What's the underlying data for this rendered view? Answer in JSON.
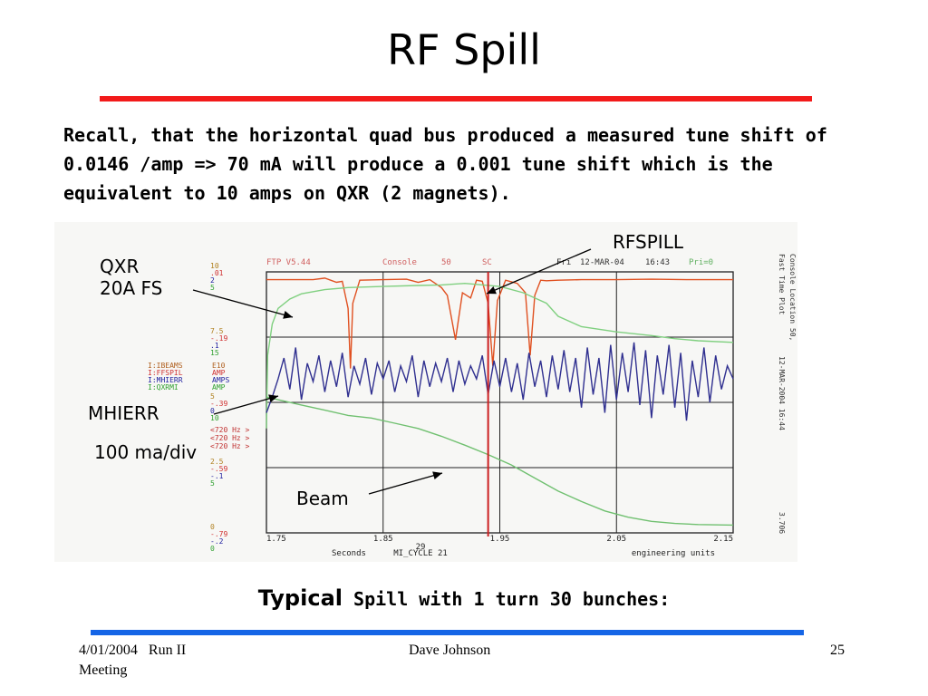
{
  "slide": {
    "title": "RF Spill",
    "paragraph": "Recall, that the horizontal quad bus produced a measured tune shift of\n0.0146 /amp => 70 mA will produce a 0.001 tune shift which is the\nequivalent to 10 amps on QXR (2 magnets).",
    "caption_big": "Typical",
    "caption_small": " Spill with 1 turn 30 bunches:",
    "footer": {
      "date": "4/01/2004",
      "event_line1": "Run II",
      "event_line2": "Meeting",
      "author": "Dave Johnson",
      "page": "25"
    },
    "colors": {
      "title_bar": "#f21a1a",
      "footer_bar": "#1565e6"
    }
  },
  "annotations": {
    "qxr_line1": "QXR",
    "qxr_line2": "20A FS",
    "rfspill": "RFSPILL",
    "mhierr": "MHIERR",
    "mhierr_scale": "100 ma/div",
    "beam": "Beam"
  },
  "chart_data": {
    "type": "line",
    "header": {
      "left": "FTP V5.44",
      "console": "Console",
      "console_no": "50",
      "sc": "SC",
      "day": "Fri",
      "date": "12-MAR-04",
      "time": "16:43",
      "pri": "Pri=0"
    },
    "right_side_text": {
      "line1": "Console Location 50,",
      "line2": "Fast Time Plot",
      "timestamp": "12-MAR-2004 16:44",
      "value": "3.706"
    },
    "xlim": [
      1.75,
      2.15
    ],
    "x_ticks": [
      "1.75",
      "1.85",
      "1.95",
      "2.05",
      "2.15"
    ],
    "x_label": "Seconds",
    "x_bottom_center_top": "29",
    "x_bottom_center": "MI_CYCLE 21",
    "x_bottom_right": "engineering units",
    "left_scales": [
      [
        "10",
        ".01",
        "2",
        "5"
      ],
      [
        "7.5",
        "-.19",
        ".1",
        "15"
      ],
      [
        "5",
        "-.39",
        "0",
        "10"
      ],
      [
        "2.5",
        "-.59",
        "-.1",
        "5"
      ],
      [
        "0",
        "-.79",
        "-.2",
        "0"
      ]
    ],
    "channels": [
      {
        "name": "I:IBEAMS",
        "unit": "E10"
      },
      {
        "name": "I:FFSPIL",
        "unit": "AMP"
      },
      {
        "name": "I:MHIERR",
        "unit": "AMPS"
      },
      {
        "name": "I:QXRMI",
        "unit": "AMP"
      }
    ],
    "rates": [
      "<720 Hz >",
      "<720 Hz >",
      "<720 Hz >"
    ],
    "series": [
      {
        "name": "RFSPILL",
        "color": "#e05020",
        "points": [
          [
            1.75,
            4.85
          ],
          [
            1.77,
            4.85
          ],
          [
            1.79,
            4.85
          ],
          [
            1.8,
            4.88
          ],
          [
            1.81,
            4.8
          ],
          [
            1.815,
            4.82
          ],
          [
            1.82,
            4.3
          ],
          [
            1.822,
            3.15
          ],
          [
            1.824,
            4.4
          ],
          [
            1.83,
            4.84
          ],
          [
            1.85,
            4.85
          ],
          [
            1.87,
            4.86
          ],
          [
            1.88,
            4.8
          ],
          [
            1.89,
            4.85
          ],
          [
            1.9,
            4.7
          ],
          [
            1.905,
            4.55
          ],
          [
            1.912,
            3.7
          ],
          [
            1.918,
            4.6
          ],
          [
            1.925,
            4.5
          ],
          [
            1.93,
            4.84
          ],
          [
            1.935,
            4.82
          ],
          [
            1.94,
            4.4
          ],
          [
            1.944,
            3.2
          ],
          [
            1.948,
            4.45
          ],
          [
            1.955,
            4.84
          ],
          [
            1.965,
            4.78
          ],
          [
            1.972,
            4.6
          ],
          [
            1.976,
            3.4
          ],
          [
            1.98,
            4.55
          ],
          [
            1.985,
            4.84
          ],
          [
            1.99,
            4.83
          ],
          [
            2.0,
            4.84
          ],
          [
            2.02,
            4.85
          ],
          [
            2.05,
            4.85
          ],
          [
            2.08,
            4.86
          ],
          [
            2.11,
            4.85
          ],
          [
            2.15,
            4.85
          ]
        ]
      },
      {
        "name": "QXR",
        "color": "#80d080",
        "points": [
          [
            1.75,
            2.0
          ],
          [
            1.751,
            3.4
          ],
          [
            1.755,
            4.0
          ],
          [
            1.76,
            4.3
          ],
          [
            1.77,
            4.48
          ],
          [
            1.78,
            4.58
          ],
          [
            1.8,
            4.66
          ],
          [
            1.82,
            4.7
          ],
          [
            1.85,
            4.72
          ],
          [
            1.88,
            4.74
          ],
          [
            1.9,
            4.75
          ],
          [
            1.92,
            4.78
          ],
          [
            1.95,
            4.72
          ],
          [
            1.97,
            4.6
          ],
          [
            1.99,
            4.4
          ],
          [
            2.0,
            4.15
          ],
          [
            2.02,
            3.95
          ],
          [
            2.05,
            3.85
          ],
          [
            2.08,
            3.78
          ],
          [
            2.1,
            3.72
          ],
          [
            2.12,
            3.68
          ],
          [
            2.15,
            3.65
          ]
        ]
      },
      {
        "name": "MHIERR",
        "color": "#303090",
        "points": [
          [
            1.75,
            2.3
          ],
          [
            1.755,
            2.6
          ],
          [
            1.76,
            2.95
          ],
          [
            1.765,
            3.35
          ],
          [
            1.77,
            2.75
          ],
          [
            1.775,
            3.55
          ],
          [
            1.78,
            2.55
          ],
          [
            1.785,
            3.25
          ],
          [
            1.79,
            2.9
          ],
          [
            1.795,
            3.4
          ],
          [
            1.8,
            2.7
          ],
          [
            1.805,
            3.3
          ],
          [
            1.81,
            2.8
          ],
          [
            1.815,
            3.45
          ],
          [
            1.82,
            2.6
          ],
          [
            1.825,
            3.2
          ],
          [
            1.83,
            2.85
          ],
          [
            1.835,
            3.35
          ],
          [
            1.84,
            2.65
          ],
          [
            1.845,
            3.25
          ],
          [
            1.85,
            2.95
          ],
          [
            1.855,
            3.3
          ],
          [
            1.86,
            2.7
          ],
          [
            1.865,
            3.2
          ],
          [
            1.87,
            2.9
          ],
          [
            1.875,
            3.4
          ],
          [
            1.88,
            2.6
          ],
          [
            1.885,
            3.3
          ],
          [
            1.89,
            2.8
          ],
          [
            1.895,
            3.25
          ],
          [
            1.9,
            2.9
          ],
          [
            1.905,
            3.35
          ],
          [
            1.91,
            2.7
          ],
          [
            1.915,
            3.3
          ],
          [
            1.92,
            2.85
          ],
          [
            1.925,
            3.2
          ],
          [
            1.93,
            2.95
          ],
          [
            1.935,
            3.4
          ],
          [
            1.94,
            2.65
          ],
          [
            1.945,
            3.3
          ],
          [
            1.95,
            2.8
          ],
          [
            1.955,
            3.35
          ],
          [
            1.96,
            2.7
          ],
          [
            1.965,
            3.25
          ],
          [
            1.97,
            2.55
          ],
          [
            1.975,
            3.45
          ],
          [
            1.98,
            2.8
          ],
          [
            1.985,
            3.3
          ],
          [
            1.99,
            2.6
          ],
          [
            1.995,
            3.4
          ],
          [
            2.0,
            2.75
          ],
          [
            2.005,
            3.5
          ],
          [
            2.01,
            2.7
          ],
          [
            2.015,
            3.35
          ],
          [
            2.02,
            2.4
          ],
          [
            2.025,
            3.55
          ],
          [
            2.03,
            2.65
          ],
          [
            2.035,
            3.35
          ],
          [
            2.04,
            2.3
          ],
          [
            2.045,
            3.6
          ],
          [
            2.05,
            2.55
          ],
          [
            2.055,
            3.45
          ],
          [
            2.06,
            2.7
          ],
          [
            2.065,
            3.65
          ],
          [
            2.07,
            2.45
          ],
          [
            2.075,
            3.5
          ],
          [
            2.08,
            2.2
          ],
          [
            2.085,
            3.4
          ],
          [
            2.09,
            2.65
          ],
          [
            2.095,
            3.6
          ],
          [
            2.1,
            2.4
          ],
          [
            2.105,
            3.45
          ],
          [
            2.11,
            2.15
          ],
          [
            2.115,
            3.3
          ],
          [
            2.12,
            2.6
          ],
          [
            2.125,
            3.55
          ],
          [
            2.13,
            2.5
          ],
          [
            2.135,
            3.4
          ],
          [
            2.14,
            2.75
          ],
          [
            2.145,
            3.2
          ],
          [
            2.15,
            2.95
          ]
        ]
      },
      {
        "name": "Beam",
        "color": "#70c070",
        "points": [
          [
            1.75,
            2.6
          ],
          [
            1.76,
            2.55
          ],
          [
            1.78,
            2.45
          ],
          [
            1.8,
            2.35
          ],
          [
            1.82,
            2.25
          ],
          [
            1.84,
            2.2
          ],
          [
            1.86,
            2.1
          ],
          [
            1.88,
            2.0
          ],
          [
            1.9,
            1.85
          ],
          [
            1.92,
            1.68
          ],
          [
            1.94,
            1.5
          ],
          [
            1.96,
            1.3
          ],
          [
            1.98,
            1.05
          ],
          [
            2.0,
            0.8
          ],
          [
            2.02,
            0.6
          ],
          [
            2.04,
            0.42
          ],
          [
            2.06,
            0.3
          ],
          [
            2.08,
            0.22
          ],
          [
            2.1,
            0.18
          ],
          [
            2.12,
            0.16
          ],
          [
            2.15,
            0.15
          ]
        ]
      }
    ],
    "beam_drop": {
      "x": 1.94,
      "from": 5.0,
      "to": 0.0,
      "color": "#cc2020"
    }
  }
}
